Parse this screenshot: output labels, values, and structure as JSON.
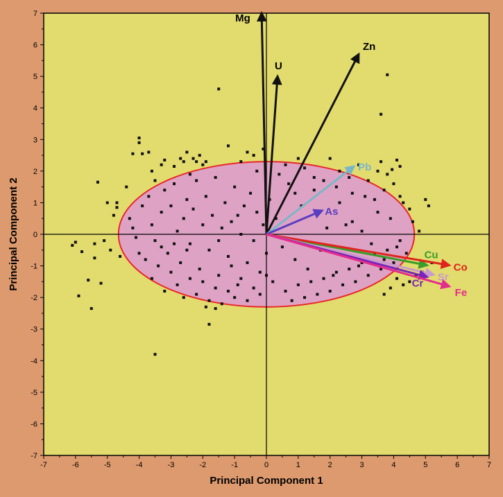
{
  "chart_data": {
    "type": "scatter",
    "title": "",
    "xlabel": "Principal Component 1",
    "ylabel": "Principal Component 2",
    "xlim": [
      -7,
      7
    ],
    "ylim": [
      -7,
      7
    ],
    "xticks": [
      -7,
      -6,
      -5,
      -4,
      -3,
      -2,
      -1,
      0,
      1,
      2,
      3,
      4,
      5,
      6,
      7
    ],
    "yticks": [
      7,
      6,
      5,
      4,
      3,
      2,
      1,
      0,
      -1,
      -2,
      -3,
      -4,
      -5,
      -6,
      -7
    ],
    "grid": false,
    "plot_background": "#e2db6e",
    "ellipse": {
      "center": [
        0,
        0
      ],
      "rx": 4.65,
      "ry": 2.3,
      "fill": "#dea3c4",
      "stroke": "#e8262a"
    },
    "vectors": [
      {
        "name": "Mg",
        "x": -0.15,
        "y": 7.0,
        "color": "#111111"
      },
      {
        "name": "U",
        "x": 0.35,
        "y": 5.0,
        "color": "#111111"
      },
      {
        "name": "Zn",
        "x": 2.9,
        "y": 5.7,
        "color": "#111111"
      },
      {
        "name": "Pb",
        "x": 2.75,
        "y": 2.15,
        "color": "#7ab6c8"
      },
      {
        "name": "As",
        "x": 1.75,
        "y": 0.75,
        "color": "#5a3dc0"
      },
      {
        "name": "Cu",
        "x": 5.05,
        "y": -0.98,
        "color": "#3a9c2a"
      },
      {
        "name": "Co",
        "x": 5.75,
        "y": -0.98,
        "color": "#e0241e"
      },
      {
        "name": "Sr",
        "x": 5.25,
        "y": -1.28,
        "color": "#c99acd"
      },
      {
        "name": "Cr",
        "x": 5.05,
        "y": -1.35,
        "color": "#7a24b8"
      },
      {
        "name": "Fe",
        "x": 5.75,
        "y": -1.65,
        "color": "#e42c8c"
      }
    ],
    "points": [
      [
        -6.1,
        -0.35
      ],
      [
        -6.0,
        -0.25
      ],
      [
        -5.9,
        -1.95
      ],
      [
        -5.8,
        -0.55
      ],
      [
        -5.6,
        -1.45
      ],
      [
        -5.5,
        -2.35
      ],
      [
        -5.4,
        -0.3
      ],
      [
        -5.4,
        -0.75
      ],
      [
        -5.2,
        -1.55
      ],
      [
        -5.1,
        -0.2
      ],
      [
        -5.3,
        1.65
      ],
      [
        -5.0,
        1.0
      ],
      [
        -4.8,
        0.6
      ],
      [
        -4.7,
        0.85
      ],
      [
        -4.9,
        -0.5
      ],
      [
        -4.6,
        -0.7
      ],
      [
        -4.7,
        1.0
      ],
      [
        -4.4,
        1.5
      ],
      [
        -4.3,
        0.5
      ],
      [
        -4.2,
        0.2
      ],
      [
        -4.1,
        -0.1
      ],
      [
        -4.0,
        -0.6
      ],
      [
        -4.0,
        3.05
      ],
      [
        -3.9,
        2.55
      ],
      [
        -4.0,
        2.9
      ],
      [
        -4.2,
        2.55
      ],
      [
        -3.7,
        2.6
      ],
      [
        -3.6,
        2.0
      ],
      [
        -3.5,
        1.7
      ],
      [
        -3.3,
        2.2
      ],
      [
        -3.2,
        2.35
      ],
      [
        -2.9,
        2.15
      ],
      [
        -2.7,
        2.4
      ],
      [
        -2.6,
        2.3
      ],
      [
        -2.5,
        2.6
      ],
      [
        -2.4,
        1.9
      ],
      [
        -2.3,
        2.4
      ],
      [
        -2.2,
        2.3
      ],
      [
        -2.1,
        2.5
      ],
      [
        -2.0,
        2.2
      ],
      [
        -1.9,
        2.3
      ],
      [
        -1.5,
        4.6
      ],
      [
        -1.2,
        2.8
      ],
      [
        -0.8,
        2.3
      ],
      [
        -0.6,
        2.6
      ],
      [
        -0.4,
        2.5
      ],
      [
        -0.3,
        2.0
      ],
      [
        -0.1,
        2.7
      ],
      [
        0.4,
        1.9
      ],
      [
        1.0,
        2.4
      ],
      [
        -3.9,
        0.9
      ],
      [
        -3.7,
        1.2
      ],
      [
        -3.6,
        0.3
      ],
      [
        -3.5,
        -0.2
      ],
      [
        -3.3,
        0.7
      ],
      [
        -3.2,
        1.4
      ],
      [
        -3.1,
        -0.6
      ],
      [
        -3.0,
        0.9
      ],
      [
        -2.9,
        1.6
      ],
      [
        -2.8,
        0.1
      ],
      [
        -2.7,
        -0.9
      ],
      [
        -2.6,
        0.5
      ],
      [
        -2.5,
        1.1
      ],
      [
        -2.4,
        -0.3
      ],
      [
        -2.3,
        0.8
      ],
      [
        -2.2,
        1.7
      ],
      [
        -2.1,
        -1.1
      ],
      [
        -2.0,
        0.3
      ],
      [
        -1.9,
        1.2
      ],
      [
        -1.8,
        -0.5
      ],
      [
        -1.7,
        0.6
      ],
      [
        -1.6,
        1.8
      ],
      [
        -1.5,
        -1.3
      ],
      [
        -1.4,
        0.2
      ],
      [
        -1.3,
        1.0
      ],
      [
        -1.2,
        -0.7
      ],
      [
        -1.1,
        0.4
      ],
      [
        -1.0,
        1.5
      ],
      [
        -0.9,
        -1.6
      ],
      [
        -0.8,
        0.0
      ],
      [
        -0.7,
        0.9
      ],
      [
        -0.6,
        -0.9
      ],
      [
        -0.5,
        1.3
      ],
      [
        -0.4,
        -0.2
      ],
      [
        -0.3,
        0.7
      ],
      [
        -0.2,
        -1.2
      ],
      [
        -0.1,
        0.3
      ],
      [
        0.0,
        -0.6
      ],
      [
        0.1,
        1.1
      ],
      [
        0.2,
        -1.5
      ],
      [
        -3.8,
        -0.8
      ],
      [
        -3.6,
        -1.4
      ],
      [
        -3.4,
        -1.0
      ],
      [
        -3.2,
        -1.8
      ],
      [
        -3.0,
        -1.2
      ],
      [
        -2.8,
        -1.6
      ],
      [
        -2.6,
        -2.0
      ],
      [
        -2.4,
        -1.4
      ],
      [
        -2.2,
        -1.9
      ],
      [
        -2.0,
        -1.5
      ],
      [
        -1.8,
        -2.1
      ],
      [
        -1.6,
        -1.7
      ],
      [
        -1.4,
        -2.2
      ],
      [
        -1.2,
        -1.8
      ],
      [
        -1.0,
        -2.0
      ],
      [
        -0.8,
        -1.4
      ],
      [
        -0.6,
        -2.1
      ],
      [
        -0.4,
        -1.7
      ],
      [
        -0.2,
        -1.9
      ],
      [
        0.0,
        -1.3
      ],
      [
        -1.8,
        -2.85
      ],
      [
        -1.9,
        -2.3
      ],
      [
        -1.6,
        -2.35
      ],
      [
        -3.5,
        -3.8
      ],
      [
        -1.1,
        -1.0
      ],
      [
        -2.5,
        -0.5
      ],
      [
        -2.9,
        -0.3
      ],
      [
        -3.3,
        -0.4
      ],
      [
        -1.5,
        -0.2
      ],
      [
        -0.9,
        0.6
      ],
      [
        0.3,
        0.5
      ],
      [
        0.5,
        -0.4
      ],
      [
        0.7,
        1.6
      ],
      [
        0.9,
        -0.8
      ],
      [
        1.1,
        0.9
      ],
      [
        1.3,
        -1.1
      ],
      [
        1.5,
        1.4
      ],
      [
        1.7,
        -0.5
      ],
      [
        1.9,
        0.2
      ],
      [
        2.1,
        -1.3
      ],
      [
        2.3,
        1.0
      ],
      [
        2.5,
        -0.7
      ],
      [
        2.7,
        0.4
      ],
      [
        2.9,
        -1.0
      ],
      [
        3.1,
        1.2
      ],
      [
        3.3,
        -0.3
      ],
      [
        3.5,
        0.7
      ],
      [
        3.7,
        -0.8
      ],
      [
        3.9,
        0.5
      ],
      [
        4.1,
        -0.4
      ],
      [
        0.6,
        -1.8
      ],
      [
        0.8,
        -2.1
      ],
      [
        1.0,
        -1.6
      ],
      [
        1.2,
        -2.0
      ],
      [
        1.4,
        -1.5
      ],
      [
        1.6,
        -1.9
      ],
      [
        1.8,
        -1.4
      ],
      [
        2.0,
        -1.8
      ],
      [
        2.2,
        -1.2
      ],
      [
        2.4,
        -1.6
      ],
      [
        2.6,
        -1.1
      ],
      [
        2.8,
        -1.5
      ],
      [
        3.0,
        -0.9
      ],
      [
        3.2,
        -1.3
      ],
      [
        3.4,
        -0.6
      ],
      [
        3.6,
        -1.1
      ],
      [
        3.8,
        -0.5
      ],
      [
        4.0,
        -0.9
      ],
      [
        4.2,
        -0.2
      ],
      [
        4.4,
        -0.6
      ],
      [
        2.0,
        2.4
      ],
      [
        2.3,
        2.0
      ],
      [
        2.6,
        1.8
      ],
      [
        2.9,
        2.2
      ],
      [
        3.2,
        1.7
      ],
      [
        3.5,
        2.0
      ],
      [
        3.6,
        2.3
      ],
      [
        3.8,
        1.9
      ],
      [
        4.0,
        1.6
      ],
      [
        4.2,
        1.2
      ],
      [
        4.1,
        2.35
      ],
      [
        4.2,
        2.15
      ],
      [
        3.95,
        2.05
      ],
      [
        3.6,
        3.8
      ],
      [
        3.8,
        5.05
      ],
      [
        3.7,
        1.4
      ],
      [
        4.3,
        1.0
      ],
      [
        4.5,
        0.8
      ],
      [
        4.6,
        0.4
      ],
      [
        4.8,
        0.1
      ],
      [
        5.0,
        1.1
      ],
      [
        5.1,
        0.9
      ],
      [
        5.2,
        -0.9
      ],
      [
        4.9,
        -1.2
      ],
      [
        4.7,
        -1.3
      ],
      [
        4.5,
        -1.5
      ],
      [
        4.3,
        -1.6
      ],
      [
        4.1,
        -1.4
      ],
      [
        3.9,
        -1.7
      ],
      [
        3.7,
        -1.9
      ],
      [
        1.5,
        1.8
      ],
      [
        1.2,
        2.1
      ],
      [
        0.9,
        1.3
      ],
      [
        0.6,
        2.2
      ],
      [
        1.8,
        1.7
      ],
      [
        2.2,
        1.5
      ],
      [
        2.7,
        1.3
      ],
      [
        3.4,
        1.1
      ],
      [
        3.0,
        0.1
      ],
      [
        2.5,
        0.3
      ]
    ]
  }
}
